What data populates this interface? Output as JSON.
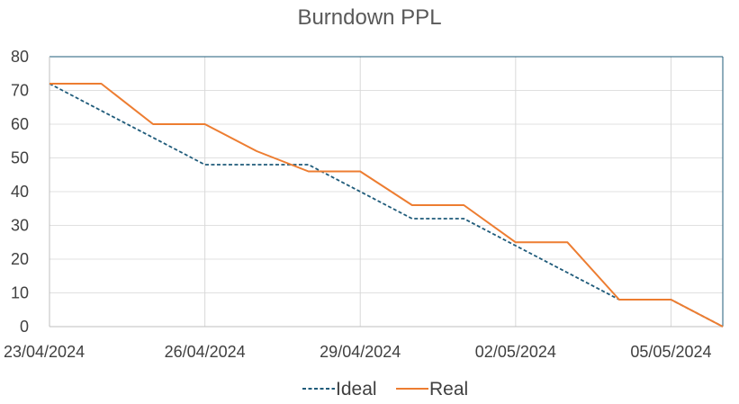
{
  "chart_data": {
    "type": "line",
    "title": "Burndown PPL",
    "xlabel": "",
    "ylabel": "",
    "x": [
      "23/04/2024",
      "24/04/2024",
      "25/04/2024",
      "26/04/2024",
      "27/04/2024",
      "28/04/2024",
      "29/04/2024",
      "30/04/2024",
      "01/05/2024",
      "02/05/2024",
      "03/05/2024",
      "04/05/2024",
      "05/05/2024",
      "06/05/2024"
    ],
    "x_tick_labels": [
      "23/04/2024",
      "26/04/2024",
      "29/04/2024",
      "02/05/2024",
      "05/05/2024"
    ],
    "ylim": [
      0,
      80
    ],
    "y_ticks": [
      0,
      10,
      20,
      30,
      40,
      50,
      60,
      70,
      80
    ],
    "grid": true,
    "legend_position": "bottom",
    "series": [
      {
        "name": "Ideal",
        "color": "#1f5b7a",
        "style": "dashed",
        "values": [
          72,
          64,
          56,
          48,
          48,
          48,
          40,
          32,
          32,
          24,
          16,
          8,
          8,
          0
        ]
      },
      {
        "name": "Real",
        "color": "#ed7d31",
        "style": "solid",
        "values": [
          72,
          72,
          60,
          60,
          52,
          46,
          46,
          36,
          36,
          25,
          25,
          8,
          8,
          0
        ]
      }
    ]
  }
}
